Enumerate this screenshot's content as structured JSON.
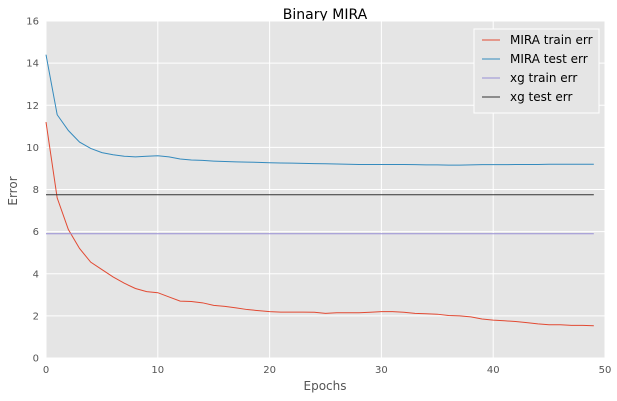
{
  "chart_data": {
    "type": "line",
    "title": "Binary MIRA",
    "xlabel": "Epochs",
    "ylabel": "Error",
    "xlim": [
      0,
      50
    ],
    "ylim": [
      0,
      16
    ],
    "xticks": [
      0,
      10,
      20,
      30,
      40,
      50
    ],
    "yticks": [
      0,
      2,
      4,
      6,
      8,
      10,
      12,
      14,
      16
    ],
    "grid": true,
    "legend_position": "top-right",
    "colors": {
      "plot_background": "#e5e5e5",
      "grid": "#ffffff",
      "tick_text": "#555555"
    },
    "x": [
      0,
      1,
      2,
      3,
      4,
      5,
      6,
      7,
      8,
      9,
      10,
      11,
      12,
      13,
      14,
      15,
      16,
      17,
      18,
      19,
      20,
      21,
      22,
      23,
      24,
      25,
      26,
      27,
      28,
      29,
      30,
      31,
      32,
      33,
      34,
      35,
      36,
      37,
      38,
      39,
      40,
      41,
      42,
      43,
      44,
      45,
      46,
      47,
      48,
      49
    ],
    "series": [
      {
        "name": "MIRA train err",
        "color": "#e24a33",
        "values": [
          11.2,
          7.6,
          6.1,
          5.2,
          4.55,
          4.2,
          3.85,
          3.55,
          3.3,
          3.15,
          3.1,
          2.9,
          2.7,
          2.68,
          2.62,
          2.5,
          2.45,
          2.38,
          2.3,
          2.25,
          2.2,
          2.18,
          2.18,
          2.18,
          2.17,
          2.12,
          2.15,
          2.15,
          2.15,
          2.17,
          2.2,
          2.2,
          2.17,
          2.12,
          2.1,
          2.08,
          2.02,
          2.0,
          1.95,
          1.85,
          1.8,
          1.77,
          1.73,
          1.68,
          1.62,
          1.58,
          1.58,
          1.55,
          1.55,
          1.53
        ]
      },
      {
        "name": "MIRA test err",
        "color": "#348abd",
        "values": [
          14.4,
          11.55,
          10.8,
          10.25,
          9.95,
          9.75,
          9.65,
          9.58,
          9.55,
          9.58,
          9.6,
          9.55,
          9.45,
          9.4,
          9.38,
          9.35,
          9.33,
          9.31,
          9.3,
          9.29,
          9.27,
          9.26,
          9.25,
          9.24,
          9.23,
          9.22,
          9.21,
          9.2,
          9.19,
          9.19,
          9.19,
          9.19,
          9.19,
          9.18,
          9.17,
          9.17,
          9.16,
          9.16,
          9.17,
          9.18,
          9.18,
          9.18,
          9.19,
          9.19,
          9.19,
          9.2,
          9.2,
          9.2,
          9.2,
          9.2
        ]
      },
      {
        "name": "xg train err",
        "color": "#988ed5",
        "values": [
          5.9,
          5.9,
          5.9,
          5.9,
          5.9,
          5.9,
          5.9,
          5.9,
          5.9,
          5.9,
          5.9,
          5.9,
          5.9,
          5.9,
          5.9,
          5.9,
          5.9,
          5.9,
          5.9,
          5.9,
          5.9,
          5.9,
          5.9,
          5.9,
          5.9,
          5.9,
          5.9,
          5.9,
          5.9,
          5.9,
          5.9,
          5.9,
          5.9,
          5.9,
          5.9,
          5.9,
          5.9,
          5.9,
          5.9,
          5.9,
          5.9,
          5.9,
          5.9,
          5.9,
          5.9,
          5.9,
          5.9,
          5.9,
          5.9,
          5.9
        ]
      },
      {
        "name": "xg test err",
        "color": "#333333",
        "values": [
          7.75,
          7.75,
          7.75,
          7.75,
          7.75,
          7.75,
          7.75,
          7.75,
          7.75,
          7.75,
          7.75,
          7.75,
          7.75,
          7.75,
          7.75,
          7.75,
          7.75,
          7.75,
          7.75,
          7.75,
          7.75,
          7.75,
          7.75,
          7.75,
          7.75,
          7.75,
          7.75,
          7.75,
          7.75,
          7.75,
          7.75,
          7.75,
          7.75,
          7.75,
          7.75,
          7.75,
          7.75,
          7.75,
          7.75,
          7.75,
          7.75,
          7.75,
          7.75,
          7.75,
          7.75,
          7.75,
          7.75,
          7.75,
          7.75,
          7.75
        ]
      }
    ]
  }
}
